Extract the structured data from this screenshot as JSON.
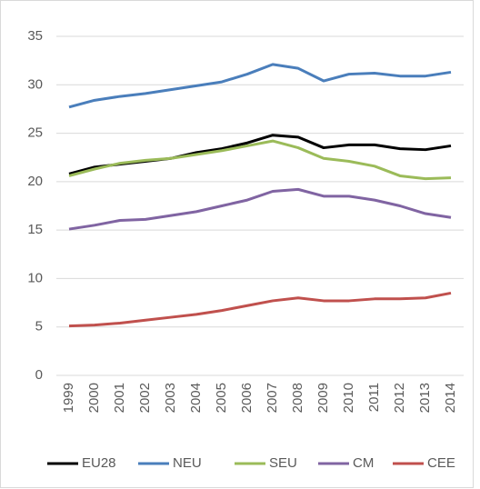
{
  "chart_data": {
    "type": "line",
    "categories": [
      "1999",
      "2000",
      "2001",
      "2002",
      "2003",
      "2004",
      "2005",
      "2006",
      "2007",
      "2008",
      "2009",
      "2010",
      "2011",
      "2012",
      "2013",
      "2014"
    ],
    "series": [
      {
        "name": "EU28",
        "color": "#000000",
        "values": [
          20.8,
          21.5,
          21.8,
          22.1,
          22.4,
          23.0,
          23.4,
          24.0,
          24.8,
          24.6,
          23.5,
          23.8,
          23.8,
          23.4,
          23.3,
          23.7
        ]
      },
      {
        "name": "NEU",
        "color": "#4a7ebb",
        "values": [
          27.7,
          28.4,
          28.8,
          29.1,
          29.5,
          29.9,
          30.3,
          31.1,
          32.1,
          31.7,
          30.4,
          31.1,
          31.2,
          30.9,
          30.9,
          31.3
        ]
      },
      {
        "name": "SEU",
        "color": "#9bbb59",
        "values": [
          20.6,
          21.3,
          21.9,
          22.2,
          22.4,
          22.8,
          23.2,
          23.7,
          24.2,
          23.5,
          22.4,
          22.1,
          21.6,
          20.6,
          20.3,
          20.4
        ]
      },
      {
        "name": "CM",
        "color": "#8064a2",
        "values": [
          15.1,
          15.5,
          16.0,
          16.1,
          16.5,
          16.9,
          17.5,
          18.1,
          19.0,
          19.2,
          18.5,
          18.5,
          18.1,
          17.5,
          16.7,
          16.3
        ]
      },
      {
        "name": "CEE",
        "color": "#c0504d",
        "values": [
          5.1,
          5.2,
          5.4,
          5.7,
          6.0,
          6.3,
          6.7,
          7.2,
          7.7,
          8.0,
          7.7,
          7.7,
          7.9,
          7.9,
          8.0,
          8.5
        ]
      }
    ],
    "ylim": [
      0,
      35
    ],
    "yticks": [
      0,
      5,
      10,
      15,
      20,
      25,
      30,
      35
    ],
    "grid": true,
    "legend": "bottom"
  }
}
